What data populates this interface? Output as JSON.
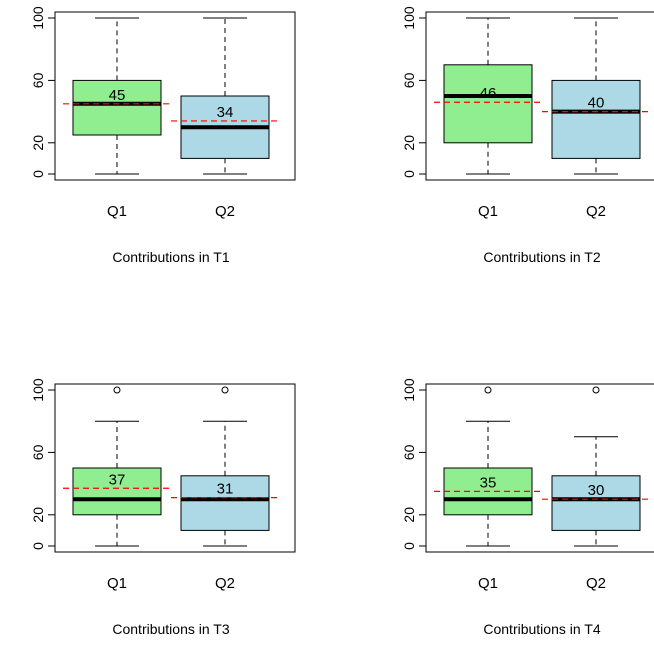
{
  "chart_data": [
    {
      "type": "box",
      "xlabel": "Contributions in T1",
      "ylim": [
        0,
        100
      ],
      "yticks": [
        "0",
        "20",
        "60",
        "100"
      ],
      "categories": [
        "Q1",
        "Q2"
      ],
      "boxes": [
        {
          "min": 0,
          "q1": 25,
          "median": 45,
          "q3": 60,
          "max": 100,
          "mean": 45,
          "mean_label": "45",
          "outliers": []
        },
        {
          "min": 0,
          "q1": 10,
          "median": 30,
          "q3": 50,
          "max": 100,
          "mean": 34,
          "mean_label": "34",
          "outliers": []
        }
      ]
    },
    {
      "type": "box",
      "xlabel": "Contributions in T2",
      "ylim": [
        0,
        100
      ],
      "yticks": [
        "0",
        "20",
        "60",
        "100"
      ],
      "categories": [
        "Q1",
        "Q2"
      ],
      "boxes": [
        {
          "min": 0,
          "q1": 20,
          "median": 50,
          "q3": 70,
          "max": 100,
          "mean": 46,
          "mean_label": "46",
          "outliers": []
        },
        {
          "min": 0,
          "q1": 10,
          "median": 40,
          "q3": 60,
          "max": 100,
          "mean": 40,
          "mean_label": "40",
          "outliers": []
        }
      ]
    },
    {
      "type": "box",
      "xlabel": "Contributions in T3",
      "ylim": [
        0,
        100
      ],
      "yticks": [
        "0",
        "20",
        "60",
        "100"
      ],
      "categories": [
        "Q1",
        "Q2"
      ],
      "boxes": [
        {
          "min": 0,
          "q1": 20,
          "median": 30,
          "q3": 50,
          "max": 80,
          "mean": 37,
          "mean_label": "37",
          "outliers": [
            100
          ]
        },
        {
          "min": 0,
          "q1": 10,
          "median": 30,
          "q3": 45,
          "max": 80,
          "mean": 31,
          "mean_label": "31",
          "outliers": [
            100
          ]
        }
      ]
    },
    {
      "type": "box",
      "xlabel": "Contributions in T4",
      "ylim": [
        0,
        100
      ],
      "yticks": [
        "0",
        "20",
        "60",
        "100"
      ],
      "categories": [
        "Q1",
        "Q2"
      ],
      "boxes": [
        {
          "min": 0,
          "q1": 20,
          "median": 30,
          "q3": 50,
          "max": 80,
          "mean": 35,
          "mean_label": "35",
          "outliers": [
            100
          ]
        },
        {
          "min": 0,
          "q1": 10,
          "median": 30,
          "q3": 45,
          "max": 70,
          "mean": 30,
          "mean_label": "30",
          "outliers": [
            100
          ]
        }
      ]
    }
  ],
  "colors": {
    "Q1_fill": "#90ee90",
    "Q2_fill": "#add8e6",
    "mean_line": "#ff0000",
    "stroke": "#000000"
  }
}
